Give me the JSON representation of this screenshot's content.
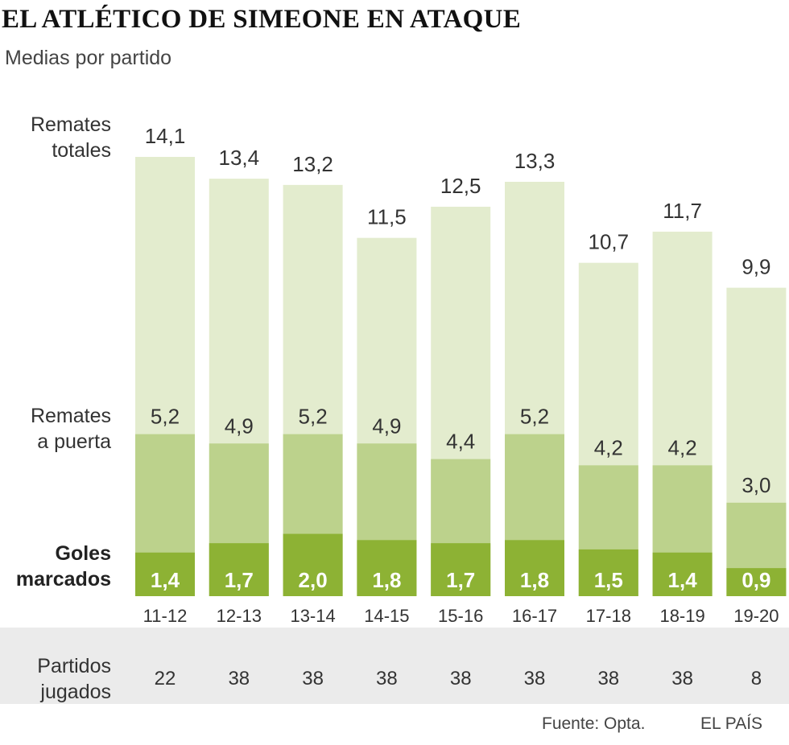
{
  "title": "EL ATLÉTICO DE SIMEONE EN ATAQUE",
  "subtitle": "Medias por partido",
  "row_labels": {
    "total_line1": "Remates",
    "total_line2": "totales",
    "onTarget_line1": "Remates",
    "onTarget_line2": "a puerta",
    "goals_line1": "Goles",
    "goals_line2": "marcados",
    "matches_line1": "Partidos",
    "matches_line2": "jugados"
  },
  "colors": {
    "total": "#e3ecce",
    "on_target": "#bcd28c",
    "goals": "#8db234",
    "band": "#ebebeb"
  },
  "chart_data": {
    "type": "bar",
    "categories": [
      "11-12",
      "12-13",
      "13-14",
      "14-15",
      "15-16",
      "16-17",
      "17-18",
      "18-19",
      "19-20"
    ],
    "series": [
      {
        "name": "Remates totales",
        "values": [
          14.1,
          13.4,
          13.2,
          11.5,
          12.5,
          13.3,
          10.7,
          11.7,
          9.9
        ],
        "labels": [
          "14,1",
          "13,4",
          "13,2",
          "11,5",
          "12,5",
          "13,3",
          "10,7",
          "11,7",
          "9,9"
        ]
      },
      {
        "name": "Remates a puerta",
        "values": [
          5.2,
          4.9,
          5.2,
          4.9,
          4.4,
          5.2,
          4.2,
          4.2,
          3.0
        ],
        "labels": [
          "5,2",
          "4,9",
          "5,2",
          "4,9",
          "4,4",
          "5,2",
          "4,2",
          "4,2",
          "3,0"
        ]
      },
      {
        "name": "Goles marcados",
        "values": [
          1.4,
          1.7,
          2.0,
          1.8,
          1.7,
          1.8,
          1.5,
          1.4,
          0.9
        ],
        "labels": [
          "1,4",
          "1,7",
          "2,0",
          "1,8",
          "1,7",
          "1,8",
          "1,5",
          "1,4",
          "0,9"
        ]
      }
    ],
    "matches_played": [
      "22",
      "38",
      "38",
      "38",
      "38",
      "38",
      "38",
      "38",
      "8"
    ],
    "ylim": [
      0,
      14.1
    ],
    "overlapping_bars": true,
    "grid": false,
    "legend": "row labels on left"
  },
  "footer": {
    "source": "Fuente: Opta.",
    "publisher": "EL PAÍS"
  }
}
